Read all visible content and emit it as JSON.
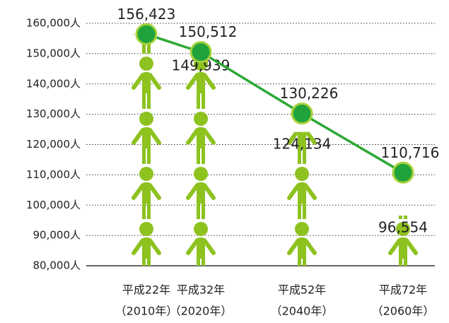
{
  "chart_data": {
    "type": "pictograph-line",
    "categories": [
      [
        "平成22年",
        "（2010年）"
      ],
      [
        "平成32年",
        "（2020年）"
      ],
      [
        "平成52年",
        "（2040年）"
      ],
      [
        "平成72年",
        "（2060年）"
      ]
    ],
    "series": [
      {
        "color": "#8dc21f",
        "values": [
          156423,
          149939,
          124134,
          96554
        ],
        "value_labels": [
          null,
          "149,939",
          "124,134",
          "96,554"
        ]
      },
      {
        "color": "#2ea836",
        "values": [
          156423,
          150512,
          130226,
          110716
        ],
        "value_labels": [
          "156,423",
          "150,512",
          "130,226",
          "110,716"
        ]
      }
    ],
    "ylim": [
      80000,
      160000
    ],
    "yticks": [
      {
        "value": 80000,
        "label": "80,000人"
      },
      {
        "value": 90000,
        "label": "90,000人"
      },
      {
        "value": 100000,
        "label": "100,000人"
      },
      {
        "value": 110000,
        "label": "110,000人"
      },
      {
        "value": 120000,
        "label": "120,000人"
      },
      {
        "value": 130000,
        "label": "130,000人"
      },
      {
        "value": 140000,
        "label": "140,000人"
      },
      {
        "value": 150000,
        "label": "150,000人"
      },
      {
        "value": 160000,
        "label": "160,000人"
      }
    ],
    "grid": true
  }
}
